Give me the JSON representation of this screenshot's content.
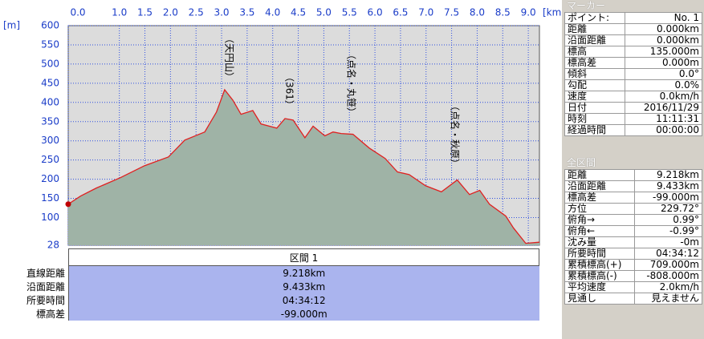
{
  "chart_data": {
    "type": "area",
    "x_label": "[km]",
    "y_label": "[m]",
    "x": [
      0,
      0.24,
      0.55,
      1.02,
      1.49,
      1.96,
      2.28,
      2.67,
      2.9,
      3.06,
      3.22,
      3.38,
      3.61,
      3.77,
      4.08,
      4.24,
      4.4,
      4.63,
      4.79,
      5.02,
      5.18,
      5.34,
      5.57,
      5.89,
      6.2,
      6.44,
      6.67,
      6.99,
      7.3,
      7.61,
      7.85,
      8.05,
      8.24,
      8.56,
      8.71,
      8.95,
      9.218
    ],
    "series": [
      {
        "name": "標高",
        "color": "#e02020",
        "fill": "#9fb3a6",
        "values": [
          135,
          156,
          177,
          204,
          235,
          258,
          302,
          323,
          375,
          433,
          406,
          369,
          379,
          344,
          333,
          358,
          354,
          308,
          338,
          313,
          323,
          319,
          317,
          281,
          254,
          219,
          212,
          183,
          167,
          198,
          160,
          171,
          135,
          104,
          73,
          33,
          36
        ]
      }
    ],
    "xlim": [
      0,
      9.218
    ],
    "xticks": [
      {
        "value": 0,
        "label": "0.0"
      },
      {
        "value": 1,
        "label": "1.0"
      },
      1.5,
      {
        "value": 2,
        "label": "2.0"
      },
      2.5,
      {
        "value": 3,
        "label": "3.0"
      },
      3.5,
      {
        "value": 4,
        "label": "4.0"
      },
      4.5,
      {
        "value": 5,
        "label": "5.0"
      },
      5.5,
      {
        "value": 6,
        "label": "6.0"
      },
      6.5,
      {
        "value": 7,
        "label": "7.0"
      },
      7.5,
      {
        "value": 8,
        "label": "8.0"
      },
      8.5,
      {
        "value": 9,
        "label": "9.0"
      }
    ],
    "ylim": [
      28,
      600
    ],
    "yticks": [
      28,
      100,
      150,
      200,
      250,
      300,
      350,
      400,
      450,
      500,
      550,
      600
    ],
    "grid": true,
    "annotations": [
      "（天円山）",
      "（361）",
      "（点名・丸笹）",
      "（点名・秋原）"
    ]
  },
  "section": {
    "title": "区間 1",
    "rows": [
      [
        "直線距離",
        "9.218km"
      ],
      [
        "沿面距離",
        "9.433km"
      ],
      [
        "所要時間",
        "04:34:12"
      ],
      [
        "標高差",
        "-99.000m"
      ]
    ]
  },
  "marker": {
    "title": "マーカー",
    "rows": [
      [
        "ポイント:",
        "No. 1"
      ],
      [
        "距離",
        "0.000km"
      ],
      [
        "沿面距離",
        "0.000km"
      ],
      [
        "標高",
        "135.000m"
      ],
      [
        "標高差",
        "0.000m"
      ],
      [
        "傾斜",
        "0.0°"
      ],
      [
        "勾配",
        "0.0%"
      ],
      [
        "速度",
        "0.0km/h"
      ],
      [
        "日付",
        "2016/11/29"
      ],
      [
        "時刻",
        "11:11:31"
      ],
      [
        "経過時間",
        "00:00:00"
      ]
    ]
  },
  "summary": {
    "title": "全区間",
    "rows": [
      [
        "距離",
        "9.218km"
      ],
      [
        "沿面距離",
        "9.433km"
      ],
      [
        "標高差",
        "-99.000m"
      ],
      [
        "方位",
        "229.72°"
      ],
      [
        "俯角→",
        "0.99°"
      ],
      [
        "俯角←",
        "-0.99°"
      ],
      [
        "沈み量",
        "-0m"
      ],
      [
        "所要時間",
        "04:34:12"
      ],
      [
        "累積標高(+)",
        "709.000m"
      ],
      [
        "累積標高(-)",
        "-808.000m"
      ],
      [
        "平均速度",
        "2.0km/h"
      ],
      [
        "見通し",
        "見えません"
      ]
    ]
  }
}
